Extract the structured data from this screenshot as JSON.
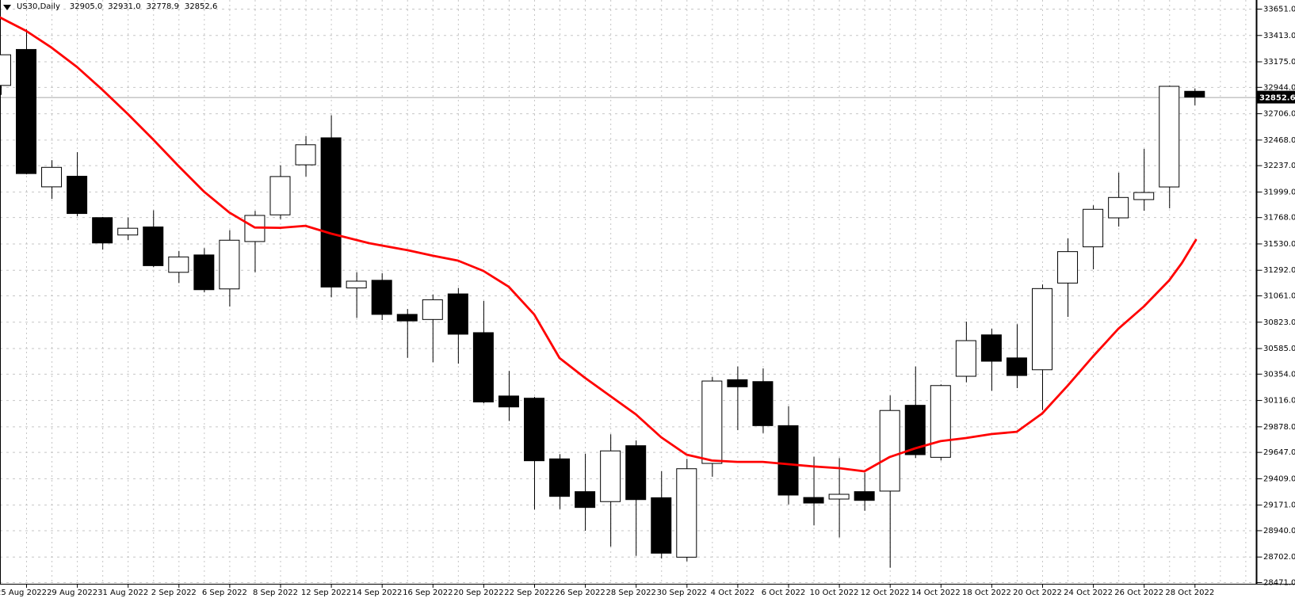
{
  "header": {
    "symbol_period": "US30,Daily",
    "open": "32905.0",
    "high": "32931.0",
    "low": "32778.9",
    "close": "32852.6"
  },
  "current_price_badge": "32852.6",
  "colors": {
    "background": "#ffffff",
    "grid": "#c6c6c6",
    "axis_line": "#000000",
    "candle_up_fill": "#ffffff",
    "candle_down_fill": "#000000",
    "candle_border": "#000000",
    "ma_line": "#ff0000",
    "current_price_line": "#a8a8a8",
    "badge_bg": "#000000",
    "badge_text": "#ffffff",
    "label_text": "#000000"
  },
  "chart_data": {
    "type": "candlestick",
    "symbol": "US30",
    "timeframe": "Daily",
    "title": "US30,Daily",
    "grid": true,
    "y_range": [
      28471.0,
      33651.0
    ],
    "y_ticks": [
      33651.0,
      33413.0,
      33175.0,
      32944.0,
      32706.0,
      32468.0,
      32237.0,
      31999.0,
      31768.0,
      31530.0,
      31292.0,
      31061.0,
      30823.0,
      30585.0,
      30354.0,
      30116.0,
      29878.0,
      29647.0,
      29409.0,
      29171.0,
      28940.0,
      28702.0,
      28471.0
    ],
    "x_labels": [
      {
        "i": 0,
        "label": "25 Aug 2022"
      },
      {
        "i": 2,
        "label": "29 Aug 2022"
      },
      {
        "i": 4,
        "label": "31 Aug 2022"
      },
      {
        "i": 6,
        "label": "2 Sep 2022"
      },
      {
        "i": 8,
        "label": "6 Sep 2022"
      },
      {
        "i": 10,
        "label": "8 Sep 2022"
      },
      {
        "i": 12,
        "label": "12 Sep 2022"
      },
      {
        "i": 14,
        "label": "14 Sep 2022"
      },
      {
        "i": 16,
        "label": "16 Sep 2022"
      },
      {
        "i": 18,
        "label": "20 Sep 2022"
      },
      {
        "i": 20,
        "label": "22 Sep 2022"
      },
      {
        "i": 22,
        "label": "26 Sep 2022"
      },
      {
        "i": 24,
        "label": "28 Sep 2022"
      },
      {
        "i": 26,
        "label": "30 Sep 2022"
      },
      {
        "i": 28,
        "label": "4 Oct 2022"
      },
      {
        "i": 30,
        "label": "6 Oct 2022"
      },
      {
        "i": 32,
        "label": "10 Oct 2022"
      },
      {
        "i": 34,
        "label": "12 Oct 2022"
      },
      {
        "i": 36,
        "label": "14 Oct 2022"
      },
      {
        "i": 38,
        "label": "18 Oct 2022"
      },
      {
        "i": 40,
        "label": "20 Oct 2022"
      },
      {
        "i": 42,
        "label": "24 Oct 2022"
      },
      {
        "i": 44,
        "label": "26 Oct 2022"
      },
      {
        "i": 46,
        "label": "28 Oct 2022"
      }
    ],
    "current_price": 32852.6,
    "candles_columns": [
      "i",
      "open",
      "high",
      "low",
      "close"
    ],
    "candles": [
      [
        -1,
        32958,
        33237,
        32873,
        33235
      ],
      [
        0,
        33283,
        33464,
        32155,
        32162
      ],
      [
        1,
        32042,
        32283,
        31933,
        32218
      ],
      [
        2,
        32138,
        32355,
        31776,
        31801
      ],
      [
        3,
        31764,
        31770,
        31475,
        31535
      ],
      [
        4,
        31607,
        31764,
        31560,
        31668
      ],
      [
        5,
        31680,
        31830,
        31318,
        31330
      ],
      [
        6,
        31270,
        31463,
        31173,
        31409
      ],
      [
        7,
        31427,
        31488,
        31089,
        31113
      ],
      [
        8,
        31120,
        31651,
        30961,
        31560
      ],
      [
        9,
        31548,
        31825,
        31270,
        31784
      ],
      [
        10,
        31789,
        32236,
        31750,
        32135
      ],
      [
        11,
        32241,
        32502,
        32135,
        32422
      ],
      [
        12,
        32485,
        32688,
        31044,
        31137
      ],
      [
        13,
        31129,
        31270,
        30858,
        31190
      ],
      [
        14,
        31198,
        31262,
        30839,
        30890
      ],
      [
        15,
        30890,
        30938,
        30498,
        30831
      ],
      [
        16,
        30844,
        31070,
        30458,
        31022
      ],
      [
        17,
        31075,
        31129,
        30445,
        30711
      ],
      [
        18,
        30725,
        31011,
        30086,
        30099
      ],
      [
        19,
        30153,
        30379,
        29927,
        30054
      ],
      [
        20,
        30133,
        30145,
        29127,
        29568
      ],
      [
        21,
        29585,
        29628,
        29131,
        29246
      ],
      [
        22,
        29289,
        29632,
        28936,
        29146
      ],
      [
        23,
        29199,
        29807,
        28793,
        29657
      ],
      [
        24,
        29704,
        29752,
        28709,
        29217
      ],
      [
        25,
        29234,
        29473,
        28685,
        28733
      ],
      [
        26,
        28697,
        29585,
        28660,
        29496
      ],
      [
        27,
        29544,
        30324,
        29424,
        30288
      ],
      [
        28,
        30300,
        30419,
        29844,
        30236
      ],
      [
        29,
        30283,
        30402,
        29818,
        29885
      ],
      [
        30,
        29885,
        30061,
        29174,
        29258
      ],
      [
        31,
        29236,
        29604,
        28984,
        29186
      ],
      [
        32,
        29222,
        29592,
        28876,
        29265
      ],
      [
        33,
        29289,
        29461,
        29116,
        29210
      ],
      [
        34,
        29294,
        30158,
        28602,
        30022
      ],
      [
        35,
        30069,
        30419,
        29592,
        29623
      ],
      [
        36,
        29599,
        30258,
        29570,
        30247
      ],
      [
        37,
        30331,
        30825,
        30276,
        30653
      ],
      [
        38,
        30705,
        30760,
        30200,
        30467
      ],
      [
        39,
        30497,
        30801,
        30224,
        30338
      ],
      [
        40,
        30390,
        31160,
        30026,
        31123
      ],
      [
        41,
        31173,
        31576,
        30867,
        31457
      ],
      [
        42,
        31500,
        31875,
        31297,
        31839
      ],
      [
        43,
        31762,
        32170,
        31683,
        31946
      ],
      [
        44,
        31927,
        32385,
        31826,
        31991
      ],
      [
        45,
        32041,
        32957,
        31848,
        32950
      ],
      [
        46,
        32905.0,
        32931.0,
        32778.9,
        32852.6
      ]
    ],
    "ma_line": {
      "name": "moving-average",
      "color": "#ff0000",
      "points": [
        [
          -1.03,
          33572
        ],
        [
          0,
          33451
        ],
        [
          1,
          33300
        ],
        [
          2,
          33125
        ],
        [
          3,
          32920
        ],
        [
          4,
          32700
        ],
        [
          5,
          32470
        ],
        [
          6,
          32230
        ],
        [
          7,
          32000
        ],
        [
          8,
          31810
        ],
        [
          9,
          31675
        ],
        [
          10,
          31672
        ],
        [
          11,
          31690
        ],
        [
          12,
          31620
        ],
        [
          13.5,
          31533
        ],
        [
          15,
          31470
        ],
        [
          16,
          31420
        ],
        [
          17,
          31376
        ],
        [
          18,
          31283
        ],
        [
          19,
          31140
        ],
        [
          20,
          30890
        ],
        [
          21,
          30496
        ],
        [
          22,
          30317
        ],
        [
          23,
          30152
        ],
        [
          24,
          29988
        ],
        [
          25,
          29780
        ],
        [
          26,
          29623
        ],
        [
          27,
          29570
        ],
        [
          28,
          29558
        ],
        [
          29,
          29558
        ],
        [
          30,
          29537
        ],
        [
          31,
          29516
        ],
        [
          32,
          29501
        ],
        [
          33,
          29473
        ],
        [
          34,
          29602
        ],
        [
          35,
          29680
        ],
        [
          36,
          29745
        ],
        [
          37,
          29773
        ],
        [
          38,
          29809
        ],
        [
          39,
          29830
        ],
        [
          40,
          29995
        ],
        [
          41,
          30245
        ],
        [
          42,
          30510
        ],
        [
          43,
          30760
        ],
        [
          44,
          30961
        ],
        [
          45,
          31197
        ],
        [
          45.5,
          31354
        ],
        [
          46.05,
          31562
        ]
      ]
    }
  }
}
